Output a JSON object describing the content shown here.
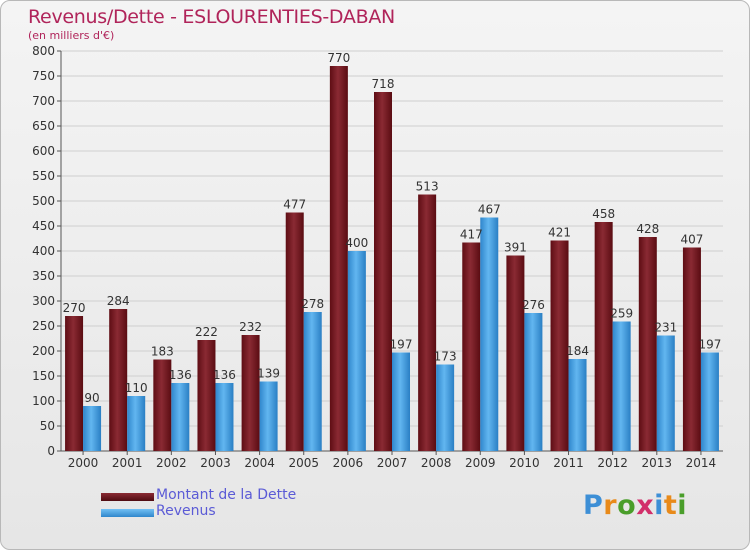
{
  "title": "Revenus/Dette - ESLOURENTIES-DABAN",
  "subtitle": "(en milliers d'€)",
  "legend": {
    "dette_label": "Montant de la Dette",
    "revenus_label": "Revenus"
  },
  "logo_text": "Proxiti",
  "colors": {
    "dette": "#7a1a22",
    "revenus": "#4da6e8",
    "title": "#b0245a",
    "legend_text": "#5b5bd6"
  },
  "chart_data": {
    "type": "bar",
    "title": "Revenus/Dette - ESLOURENTIES-DABAN",
    "ylabel": "(en milliers d'€)",
    "categories": [
      "2000",
      "2001",
      "2002",
      "2003",
      "2004",
      "2005",
      "2006",
      "2007",
      "2008",
      "2009",
      "2010",
      "2011",
      "2012",
      "2013",
      "2014"
    ],
    "series": [
      {
        "name": "Montant de la Dette",
        "values": [
          270,
          284,
          183,
          222,
          232,
          477,
          770,
          718,
          513,
          417,
          391,
          421,
          458,
          428,
          407
        ]
      },
      {
        "name": "Revenus",
        "values": [
          90,
          110,
          136,
          136,
          139,
          278,
          400,
          197,
          173,
          467,
          276,
          184,
          259,
          231,
          197
        ]
      }
    ],
    "ylim": [
      0,
      800
    ],
    "yticks": [
      0,
      50,
      100,
      150,
      200,
      250,
      300,
      350,
      400,
      450,
      500,
      550,
      600,
      650,
      700,
      750,
      800
    ],
    "grid": true,
    "legend_position": "bottom-left"
  }
}
